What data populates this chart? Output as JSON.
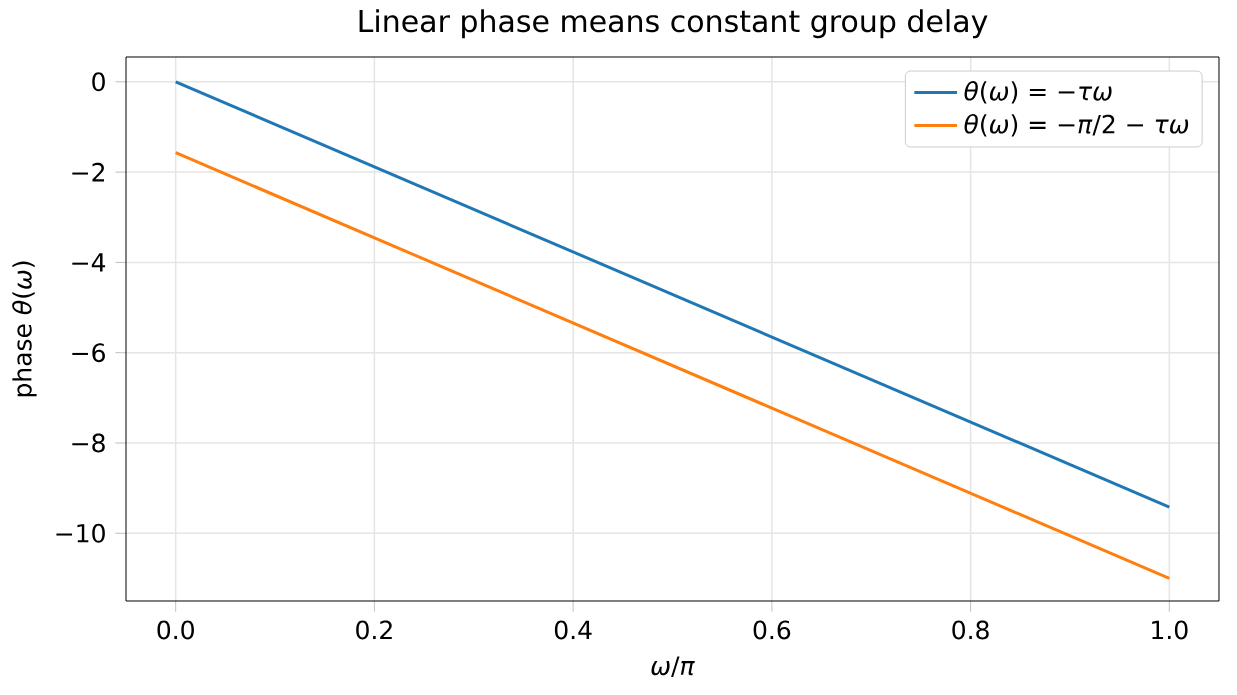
{
  "chart_data": {
    "type": "line",
    "title": "Linear phase means constant group delay",
    "xlabel": "*ω*/*π*",
    "ylabel": "phase *θ*(*ω*)",
    "x": [
      0,
      1
    ],
    "series": [
      {
        "name": "*θ*(*ω*) = −*τω*",
        "color": "#1f77b4",
        "values": [
          0,
          -9.42
        ]
      },
      {
        "name": "*θ*(*ω*) = −*π*/2 − *τω*",
        "color": "#ff7f0e",
        "values": [
          -1.57,
          -11.0
        ]
      }
    ],
    "xlim": [
      -0.05,
      1.05
    ],
    "ylim": [
      -11.5,
      0.55
    ],
    "xticks": [
      {
        "value": 0,
        "label": "0.0"
      },
      0.2,
      0.4,
      0.6,
      0.8,
      {
        "value": 1,
        "label": "1.0"
      }
    ],
    "yticks": [
      {
        "value": -10,
        "label": "−10"
      },
      {
        "value": -8,
        "label": "−8"
      },
      {
        "value": -6,
        "label": "−6"
      },
      {
        "value": -4,
        "label": "−4"
      },
      {
        "value": -2,
        "label": "−2"
      },
      0
    ],
    "grid": true,
    "legend": "top right",
    "marker": "none",
    "line_style": "solid"
  }
}
